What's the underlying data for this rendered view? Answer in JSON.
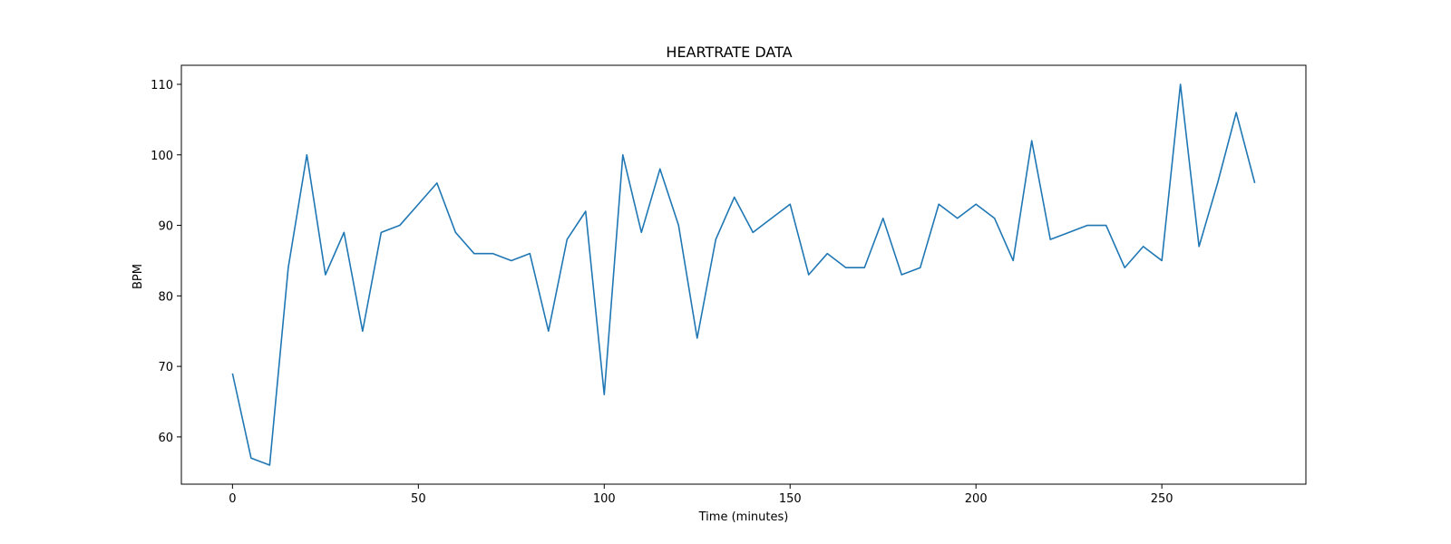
{
  "chart_data": {
    "type": "line",
    "title": "HEARTRATE DATA",
    "xlabel": "Time (minutes)",
    "ylabel": "BPM",
    "xlim": [
      -13.75,
      288.75
    ],
    "ylim": [
      53.3,
      112.7
    ],
    "xticks": [
      0,
      50,
      100,
      150,
      200,
      250
    ],
    "yticks": [
      60,
      70,
      80,
      90,
      100,
      110
    ],
    "grid": false,
    "series": [
      {
        "color": "#1f77b4",
        "x": [
          0,
          5,
          10,
          15,
          20,
          25,
          30,
          35,
          40,
          45,
          50,
          55,
          60,
          65,
          70,
          75,
          80,
          85,
          90,
          95,
          100,
          105,
          110,
          115,
          120,
          125,
          130,
          135,
          140,
          145,
          150,
          155,
          160,
          165,
          170,
          175,
          180,
          185,
          190,
          195,
          200,
          205,
          210,
          215,
          220,
          225,
          230,
          235,
          240,
          245,
          250,
          255,
          260,
          265,
          270,
          275
        ],
        "y": [
          69,
          57,
          56,
          84,
          100,
          83,
          89,
          75,
          89,
          90,
          93,
          96,
          89,
          86,
          86,
          85,
          86,
          75,
          88,
          92,
          66,
          100,
          89,
          98,
          90,
          74,
          88,
          94,
          89,
          91,
          93,
          83,
          86,
          84,
          84,
          91,
          83,
          84,
          93,
          91,
          93,
          91,
          85,
          102,
          88,
          89,
          90,
          90,
          84,
          87,
          85,
          110,
          87,
          96,
          106,
          96
        ]
      }
    ]
  }
}
